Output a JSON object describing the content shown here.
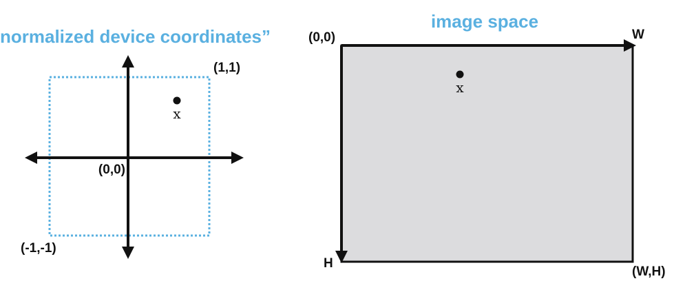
{
  "ndc": {
    "title": "“normalized device coordinates”",
    "origin_label": "(0,0)",
    "top_right_label": "(1,1)",
    "bottom_left_label": "(-1,-1)",
    "point_label": "x",
    "box_color": "#5ab0e0"
  },
  "image_space": {
    "title": "image space",
    "origin_label": "(0,0)",
    "width_axis_label": "W",
    "height_axis_label": "H",
    "corner_label": "(W,H)",
    "point_label": "x",
    "fill_color": "#dcdcde"
  },
  "colors": {
    "title": "#5ab0e0",
    "ink": "#111111"
  }
}
